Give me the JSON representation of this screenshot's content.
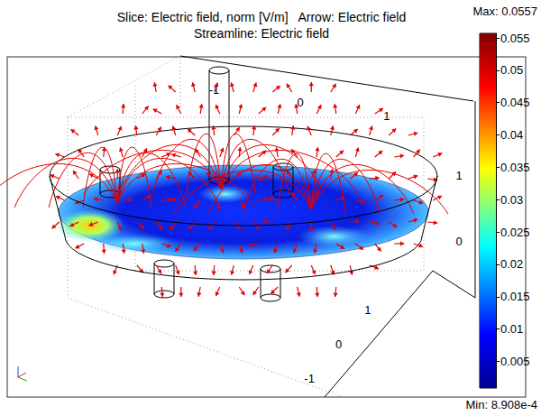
{
  "chart_data": {
    "type": "field",
    "title": [
      "Slice: Electric field, norm [V/m]   Arrow: Electric field",
      "Streamline: Electric field"
    ],
    "color": "#e00000",
    "colorbar": {
      "range": [
        0.0008908,
        0.0557
      ],
      "ticks": [
        0.005,
        0.01,
        0.015,
        0.02,
        0.025,
        0.03,
        0.035,
        0.04,
        0.045,
        0.05,
        0.055
      ],
      "max_label": "Max: 0.0557",
      "min_label": "Min: 8.908e-4"
    },
    "xlim": [
      -1.55,
      1.85
    ],
    "xticks": [
      -1,
      0,
      1
    ],
    "ylim": [
      -1.25,
      2.45
    ],
    "yticks": [
      -1,
      0,
      1
    ],
    "zlim": [
      -0.85,
      2.15
    ],
    "zticks": [
      0,
      1
    ]
  }
}
